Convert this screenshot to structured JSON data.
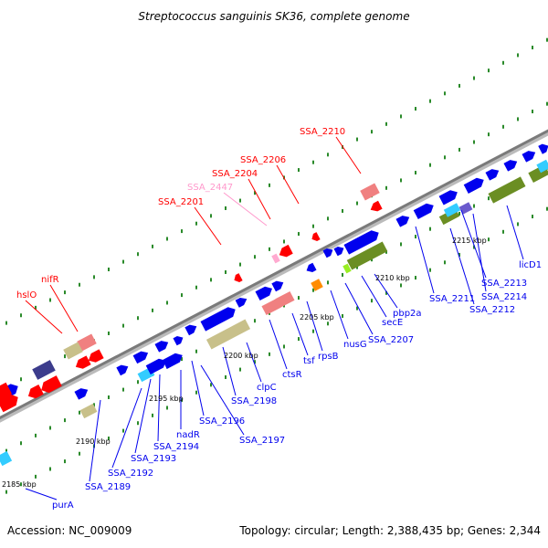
{
  "title": "Streptococcus sanguinis SK36, complete genome",
  "footer": {
    "accession": "Accession: NC_009009",
    "summary": "Topology: circular; Length: 2,388,435 bp; Genes: 2,344"
  },
  "colors": {
    "forward_cds": "#0000ee",
    "reverse_feature": "#ff0000",
    "highlight_label": "#ff0000",
    "pink_label": "#ff99cc",
    "backbone": "#888888",
    "tick_dots": "#2a8a2a",
    "khaki": "#c8c08a",
    "olive": "#6b8e23",
    "salmon": "#f08080",
    "orange": "#ff8c00",
    "cyan": "#33ccff",
    "indigo": "#3c3c8c"
  },
  "ticks": [
    "2185 kbp",
    "2190 kbp",
    "2195 kbp",
    "2200 kbp",
    "2205 kbp",
    "2210 kbp",
    "2215 kbp"
  ],
  "genes_top": [
    {
      "label": "SSA_2210",
      "color": "red"
    },
    {
      "label": "SSA_2206",
      "color": "red"
    },
    {
      "label": "SSA_2204",
      "color": "red"
    },
    {
      "label": "SSA_2447",
      "color": "pink"
    },
    {
      "label": "SSA_2201",
      "color": "red"
    },
    {
      "label": "nifR",
      "color": "red"
    },
    {
      "label": "hslO",
      "color": "red"
    }
  ],
  "genes_bottom": [
    {
      "label": "licD1"
    },
    {
      "label": "SSA_2213"
    },
    {
      "label": "SSA_2214"
    },
    {
      "label": "SSA_2211"
    },
    {
      "label": "SSA_2212"
    },
    {
      "label": "pbp2a"
    },
    {
      "label": "secE"
    },
    {
      "label": "SSA_2207"
    },
    {
      "label": "nusG"
    },
    {
      "label": "rpsB"
    },
    {
      "label": "tsf"
    },
    {
      "label": "ctsR"
    },
    {
      "label": "clpC"
    },
    {
      "label": "SSA_2198"
    },
    {
      "label": "SSA_2196"
    },
    {
      "label": "SSA_2197"
    },
    {
      "label": "nadR"
    },
    {
      "label": "SSA_2194"
    },
    {
      "label": "SSA_2193"
    },
    {
      "label": "SSA_2192"
    },
    {
      "label": "SSA_2189"
    },
    {
      "label": "purA"
    }
  ]
}
